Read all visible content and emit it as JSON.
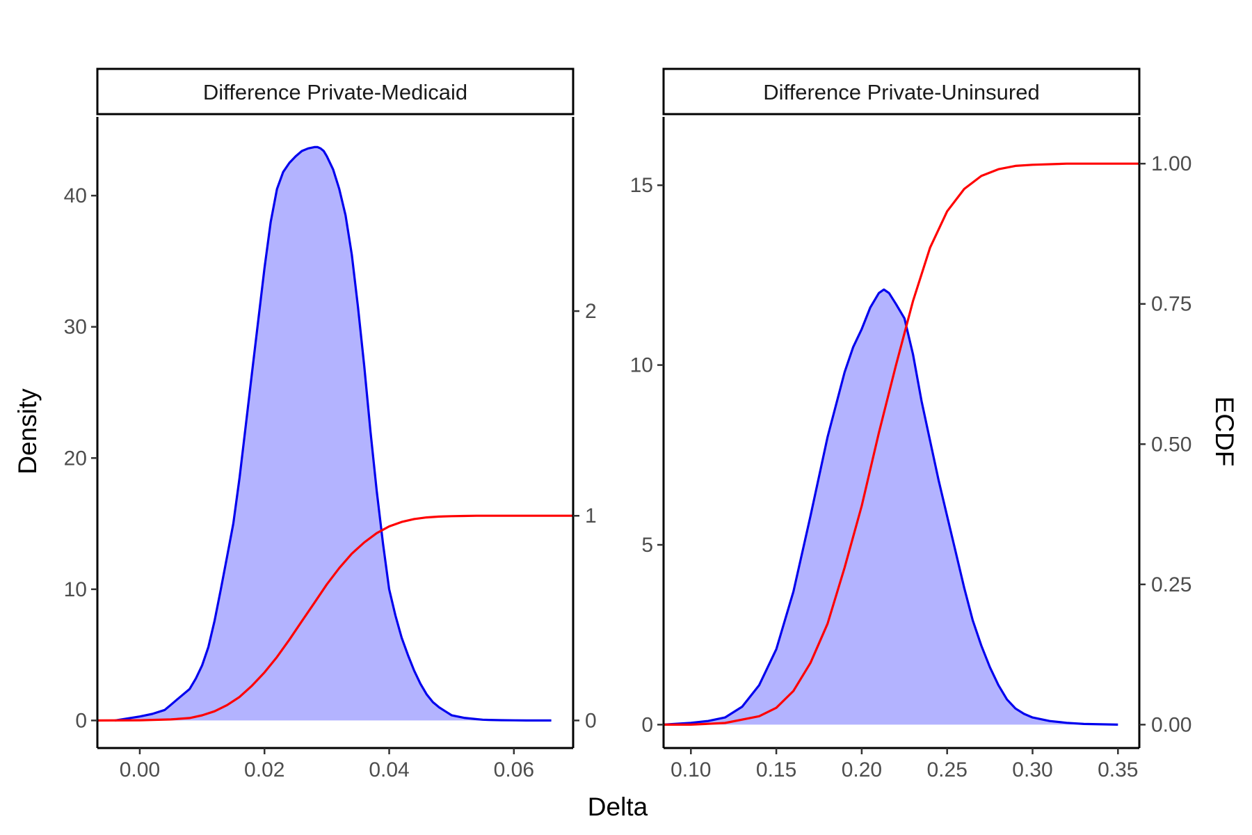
{
  "chart_data": {
    "type": "area",
    "xlabel": "Delta",
    "ylabel": "Density",
    "y2label": "ECDF",
    "colors": {
      "density_fill": "#b3b3ff",
      "density_line": "#0000ee",
      "ecdf_line": "#ff0000"
    },
    "panels": [
      {
        "title": "Difference Private-Medicaid",
        "xlim": [
          -0.0068,
          0.0695
        ],
        "ylim": [
          -2.1,
          46.0
        ],
        "x_ticks": [
          0.0,
          0.02,
          0.04,
          0.06
        ],
        "x_tick_labels": [
          "0.00",
          "0.02",
          "0.04",
          "0.06"
        ],
        "y_ticks": [
          0,
          10,
          20,
          30,
          40
        ],
        "y_tick_labels": [
          "0",
          "10",
          "20",
          "30",
          "40"
        ],
        "y2_scale": 15.6,
        "y2_ticks": [
          0,
          1,
          2
        ],
        "y2_tick_labels": [
          "0",
          "1",
          "2"
        ],
        "density": {
          "x": [
            -0.004,
            0.0,
            0.002,
            0.004,
            0.005,
            0.006,
            0.008,
            0.009,
            0.01,
            0.011,
            0.012,
            0.013,
            0.014,
            0.015,
            0.016,
            0.017,
            0.018,
            0.019,
            0.02,
            0.021,
            0.022,
            0.023,
            0.024,
            0.025,
            0.026,
            0.027,
            0.028,
            0.0285,
            0.029,
            0.0295,
            0.03,
            0.031,
            0.032,
            0.033,
            0.034,
            0.035,
            0.036,
            0.037,
            0.038,
            0.039,
            0.04,
            0.041,
            0.042,
            0.043,
            0.044,
            0.045,
            0.046,
            0.047,
            0.048,
            0.049,
            0.05,
            0.052,
            0.054,
            0.055,
            0.056,
            0.058,
            0.06,
            0.062,
            0.064,
            0.066
          ],
          "y": [
            0.0,
            0.3,
            0.5,
            0.8,
            1.2,
            1.6,
            2.4,
            3.2,
            4.2,
            5.6,
            7.6,
            10.0,
            12.5,
            15.0,
            18.5,
            22.5,
            26.5,
            30.5,
            34.5,
            38.0,
            40.5,
            41.8,
            42.5,
            43.0,
            43.4,
            43.6,
            43.7,
            43.7,
            43.6,
            43.4,
            43.0,
            42.0,
            40.5,
            38.5,
            35.5,
            31.5,
            27.0,
            22.0,
            17.5,
            13.5,
            10.0,
            8.0,
            6.3,
            5.0,
            3.8,
            2.8,
            2.0,
            1.4,
            1.0,
            0.7,
            0.4,
            0.2,
            0.1,
            0.06,
            0.04,
            0.02,
            0.01,
            0.0,
            0.0,
            0.0
          ]
        },
        "ecdf": {
          "x": [
            -0.0068,
            0.0,
            0.005,
            0.008,
            0.01,
            0.012,
            0.014,
            0.016,
            0.018,
            0.02,
            0.022,
            0.024,
            0.026,
            0.028,
            0.03,
            0.032,
            0.034,
            0.036,
            0.038,
            0.04,
            0.042,
            0.044,
            0.046,
            0.048,
            0.05,
            0.052,
            0.054,
            0.056,
            0.06,
            0.0695
          ],
          "y": [
            0.0,
            0.001,
            0.005,
            0.012,
            0.025,
            0.045,
            0.075,
            0.115,
            0.17,
            0.235,
            0.31,
            0.395,
            0.485,
            0.575,
            0.665,
            0.745,
            0.815,
            0.87,
            0.915,
            0.948,
            0.97,
            0.984,
            0.992,
            0.996,
            0.998,
            0.999,
            1.0,
            1.0,
            1.0,
            1.0
          ]
        }
      },
      {
        "title": "Difference Private-Uninsured",
        "xlim": [
          0.084,
          0.3625
        ],
        "ylim": [
          -0.65,
          16.9
        ],
        "x_ticks": [
          0.1,
          0.15,
          0.2,
          0.25,
          0.3,
          0.35
        ],
        "x_tick_labels": [
          "0.10",
          "0.15",
          "0.20",
          "0.25",
          "0.30",
          "0.35"
        ],
        "y_ticks": [
          0,
          5,
          10,
          15
        ],
        "y_tick_labels": [
          "0",
          "5",
          "10",
          "15"
        ],
        "y2_scale": 15.6,
        "y2_ticks": [
          0,
          0.25,
          0.5,
          0.75,
          1.0
        ],
        "y2_tick_labels": [
          "0.00",
          "0.25",
          "0.50",
          "0.75",
          "1.00"
        ],
        "density": {
          "x": [
            0.084,
            0.1,
            0.11,
            0.12,
            0.13,
            0.14,
            0.15,
            0.16,
            0.17,
            0.18,
            0.19,
            0.195,
            0.2,
            0.205,
            0.21,
            0.213,
            0.216,
            0.22,
            0.225,
            0.23,
            0.235,
            0.24,
            0.245,
            0.25,
            0.255,
            0.26,
            0.265,
            0.27,
            0.275,
            0.28,
            0.285,
            0.29,
            0.295,
            0.3,
            0.31,
            0.32,
            0.33,
            0.35
          ],
          "y": [
            0.0,
            0.05,
            0.1,
            0.2,
            0.5,
            1.1,
            2.1,
            3.7,
            5.8,
            8.0,
            9.8,
            10.5,
            11.0,
            11.6,
            12.0,
            12.1,
            12.0,
            11.7,
            11.3,
            10.3,
            9.0,
            7.9,
            6.8,
            5.8,
            4.8,
            3.8,
            2.9,
            2.2,
            1.6,
            1.1,
            0.7,
            0.45,
            0.3,
            0.2,
            0.1,
            0.05,
            0.02,
            0.0
          ]
        },
        "ecdf": {
          "x": [
            0.084,
            0.1,
            0.12,
            0.14,
            0.15,
            0.16,
            0.17,
            0.18,
            0.19,
            0.2,
            0.21,
            0.22,
            0.23,
            0.24,
            0.25,
            0.26,
            0.27,
            0.28,
            0.29,
            0.3,
            0.32,
            0.35,
            0.3625
          ],
          "y": [
            0.0,
            0.0,
            0.003,
            0.015,
            0.03,
            0.06,
            0.11,
            0.18,
            0.28,
            0.39,
            0.52,
            0.64,
            0.755,
            0.85,
            0.915,
            0.955,
            0.978,
            0.99,
            0.996,
            0.998,
            1.0,
            1.0,
            1.0
          ]
        }
      }
    ]
  }
}
